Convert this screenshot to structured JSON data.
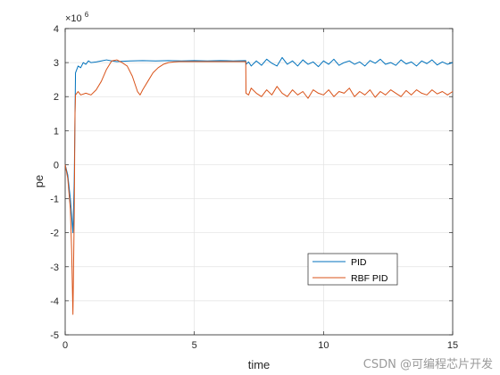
{
  "chart_data": {
    "type": "line",
    "xlabel": "time",
    "ylabel": "pe",
    "xlim": [
      0,
      15
    ],
    "ylim": [
      -5,
      4
    ],
    "y_exponent_label": "×10",
    "y_exponent_power": "6",
    "x_ticks": [
      0,
      5,
      10,
      15
    ],
    "y_ticks": [
      -5,
      -4,
      -3,
      -2,
      -1,
      0,
      1,
      2,
      3,
      4
    ],
    "grid": true,
    "legend_position": "lower-right",
    "series": [
      {
        "name": "PID",
        "color": "#0072BD",
        "x": [
          0,
          0.1,
          0.2,
          0.3,
          0.35,
          0.4,
          0.5,
          0.6,
          0.7,
          0.8,
          0.9,
          1.0,
          1.2,
          1.4,
          1.6,
          1.8,
          2.0,
          2.5,
          3.0,
          3.5,
          4.0,
          4.5,
          5.0,
          5.5,
          6.0,
          6.5,
          6.99,
          7.0,
          7.1,
          7.2,
          7.4,
          7.6,
          7.8,
          8.0,
          8.2,
          8.4,
          8.6,
          8.8,
          9.0,
          9.2,
          9.4,
          9.6,
          9.8,
          10.0,
          10.2,
          10.4,
          10.6,
          10.8,
          11.0,
          11.2,
          11.4,
          11.6,
          11.8,
          12.0,
          12.2,
          12.4,
          12.6,
          12.8,
          13.0,
          13.2,
          13.4,
          13.6,
          13.8,
          14.0,
          14.2,
          14.4,
          14.6,
          14.8,
          15.0
        ],
        "values": [
          0,
          -0.3,
          -1.0,
          -2.0,
          -0.5,
          2.7,
          2.9,
          2.85,
          3.0,
          2.95,
          3.05,
          3.0,
          3.02,
          3.05,
          3.08,
          3.05,
          3.03,
          3.05,
          3.06,
          3.05,
          3.06,
          3.05,
          3.06,
          3.05,
          3.06,
          3.05,
          3.06,
          2.95,
          3.02,
          2.9,
          3.05,
          2.92,
          3.1,
          2.98,
          2.9,
          3.15,
          2.95,
          3.05,
          2.9,
          3.08,
          2.95,
          3.02,
          2.88,
          3.05,
          2.95,
          3.1,
          2.92,
          3.0,
          3.05,
          2.95,
          3.02,
          2.9,
          3.06,
          2.98,
          3.1,
          2.95,
          3.0,
          2.92,
          3.08,
          2.96,
          3.02,
          2.9,
          3.05,
          2.97,
          3.08,
          2.93,
          3.02,
          2.95,
          3.0
        ]
      },
      {
        "name": "RBF PID",
        "color": "#D95319",
        "x": [
          0,
          0.1,
          0.2,
          0.25,
          0.3,
          0.35,
          0.38,
          0.4,
          0.5,
          0.6,
          0.8,
          1.0,
          1.2,
          1.4,
          1.6,
          1.8,
          2.0,
          2.2,
          2.4,
          2.6,
          2.8,
          2.9,
          3.0,
          3.2,
          3.4,
          3.6,
          3.8,
          4.0,
          4.2,
          4.4,
          4.6,
          5.0,
          5.5,
          6.0,
          6.5,
          6.99,
          7.0,
          7.1,
          7.2,
          7.4,
          7.6,
          7.8,
          8.0,
          8.2,
          8.4,
          8.6,
          8.8,
          9.0,
          9.2,
          9.4,
          9.6,
          9.8,
          10.0,
          10.2,
          10.4,
          10.6,
          10.8,
          11.0,
          11.2,
          11.4,
          11.6,
          11.8,
          12.0,
          12.2,
          12.4,
          12.6,
          12.8,
          13.0,
          13.2,
          13.4,
          13.6,
          13.8,
          14.0,
          14.2,
          14.4,
          14.6,
          14.8,
          15.0
        ],
        "values": [
          0,
          -0.4,
          -1.3,
          -2.5,
          -4.4,
          -1.5,
          1.5,
          2.05,
          2.15,
          2.05,
          2.1,
          2.05,
          2.2,
          2.45,
          2.8,
          3.05,
          3.08,
          3.0,
          2.9,
          2.6,
          2.15,
          2.05,
          2.2,
          2.45,
          2.7,
          2.85,
          2.95,
          3.0,
          3.02,
          3.03,
          3.03,
          3.03,
          3.03,
          3.03,
          3.03,
          3.03,
          2.1,
          2.05,
          2.25,
          2.1,
          2.0,
          2.2,
          2.05,
          2.3,
          2.1,
          2.0,
          2.2,
          2.05,
          2.15,
          1.95,
          2.2,
          2.1,
          2.05,
          2.2,
          2.0,
          2.15,
          2.1,
          2.25,
          2.0,
          2.15,
          2.05,
          2.2,
          1.98,
          2.15,
          2.05,
          2.2,
          2.1,
          2.0,
          2.18,
          2.05,
          2.2,
          2.1,
          2.05,
          2.2,
          2.08,
          2.15,
          2.05,
          2.15
        ]
      }
    ]
  },
  "watermark": "CSDN @可编程芯片开发"
}
